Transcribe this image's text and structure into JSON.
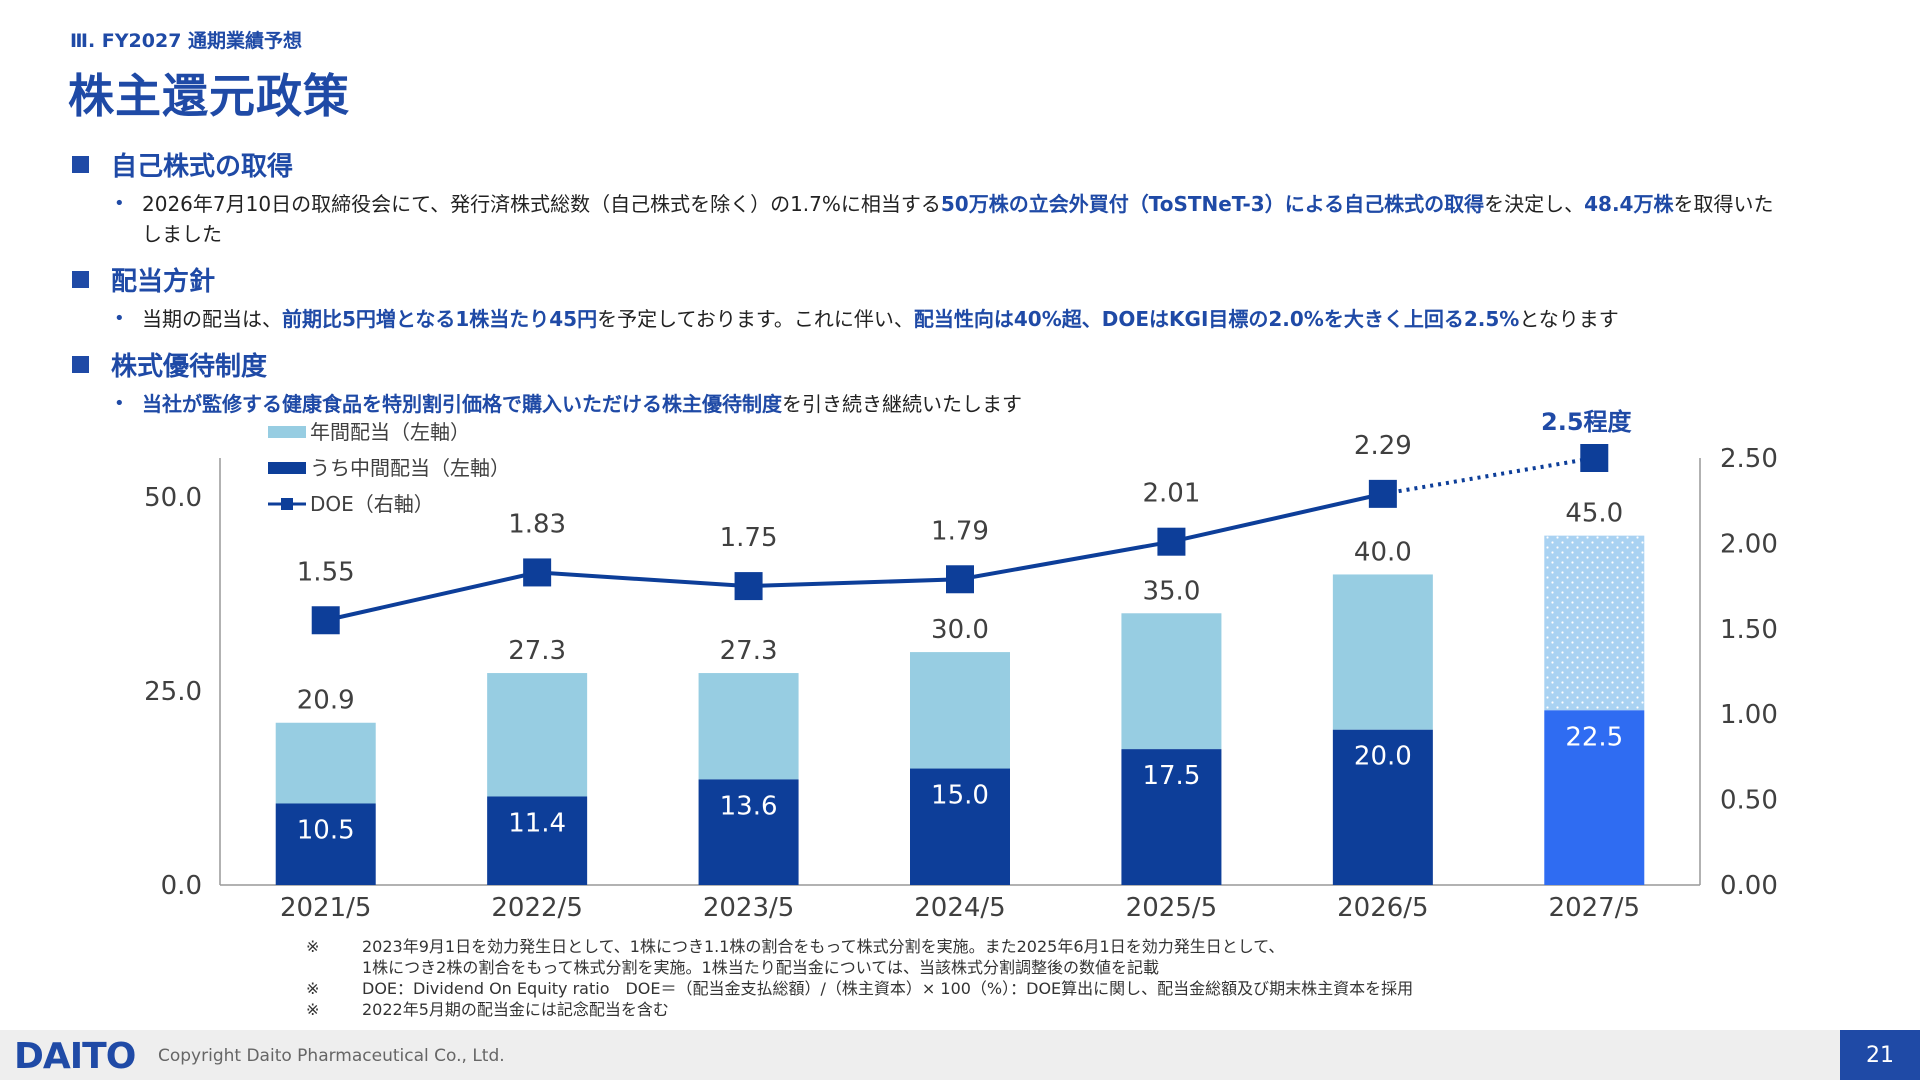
{
  "header": {
    "section_label": "Ⅲ. FY2027 通期業績予想",
    "title": "株主還元政策"
  },
  "sections": [
    {
      "heading": "自己株式の取得",
      "bullet": {
        "p1": "2026年7月10日の取締役会にて、発行済株式総数（自己株式を除く）の1.7%に相当する",
        "h1": "50万株の立会外買付（ToSTNeT-3）による自己株式の取得",
        "p2": "を決定し、",
        "h2": "48.4万株",
        "p3": "を取得いたしました"
      }
    },
    {
      "heading": "配当方針",
      "bullet": {
        "p1": "当期の配当は、",
        "h1": "前期比5円増となる1株当たり45円",
        "p2": "を予定しております。これに伴い、",
        "h2": "配当性向は40%超、DOEはKGI目標の2.0%を大きく上回る2.5%",
        "p3": "となります"
      }
    },
    {
      "heading": "株式優待制度",
      "bullet": {
        "p1": "",
        "h1": "当社が監修する健康食品を特別割引価格で購入いただける株主優待制度",
        "p2": "を引き続き継続いたします",
        "h2": "",
        "p3": ""
      }
    }
  ],
  "chart_data": {
    "type": "bar",
    "categories": [
      "2021/5",
      "2022/5",
      "2023/5",
      "2024/5",
      "2025/5",
      "2026/5",
      "2027/5"
    ],
    "series": [
      {
        "name": "年間配当（左軸）",
        "type": "bar",
        "axis": "left",
        "values": [
          20.9,
          27.3,
          27.3,
          30.0,
          35.0,
          40.0,
          45.0
        ],
        "labels": [
          "20.9",
          "27.3",
          "27.3",
          "30.0",
          "35.0",
          "40.0",
          "45.0"
        ]
      },
      {
        "name": "うち中間配当（左軸）",
        "type": "bar",
        "axis": "left",
        "values": [
          10.5,
          11.4,
          13.6,
          15.0,
          17.5,
          20.0,
          22.5
        ],
        "labels": [
          "10.5",
          "11.4",
          "13.6",
          "15.0",
          "17.5",
          "20.0",
          "22.5"
        ]
      },
      {
        "name": "DOE（右軸）",
        "type": "line",
        "axis": "right",
        "values": [
          1.55,
          1.83,
          1.75,
          1.79,
          2.01,
          2.29,
          2.5
        ],
        "labels": [
          "1.55",
          "1.83",
          "1.75",
          "1.79",
          "2.01",
          "2.29",
          ""
        ]
      }
    ],
    "forecast_category": "2027/5",
    "doe_target_label": "2.5程度",
    "y_left": {
      "ylim": [
        0,
        55
      ],
      "ticks": [
        0,
        25,
        50
      ],
      "tick_labels": [
        "0.0",
        "25.0",
        "50.0"
      ]
    },
    "y_right": {
      "ylim": [
        0,
        2.5
      ],
      "ticks": [
        0,
        0.5,
        1.0,
        1.5,
        2.0,
        2.5
      ],
      "tick_labels": [
        "0.00",
        "0.50",
        "1.00",
        "1.50",
        "2.00",
        "2.50"
      ]
    },
    "legend": "top-left",
    "grid": false,
    "colors": {
      "annual": "#97cde2",
      "interim": "#0d3e99",
      "doe": "#0d3e99",
      "forecast_annual": "#a9d2f2",
      "forecast_interim": "#2f6cf2"
    }
  },
  "notes": [
    {
      "mark": "※",
      "text": "2023年9月1日を効力発生日として、1株につき1.1株の割合をもって株式分割を実施。また2025年6月1日を効力発生日として、\n1株につき2株の割合をもって株式分割を実施。1株当たり配当金については、当該株式分割調整後の数値を記載"
    },
    {
      "mark": "※",
      "text": "DOE：Dividend On Equity ratio　DOE＝（配当金支払総額）/（株主資本）× 100（%）：DOE算出に関し、配当金総額及び期末株主資本を採用"
    },
    {
      "mark": "※",
      "text": "2022年5月期の配当金には記念配当を含む"
    }
  ],
  "footer": {
    "logo": "DAITO",
    "copyright": "Copyright  Daito Pharmaceutical Co., Ltd.",
    "page": "21"
  }
}
